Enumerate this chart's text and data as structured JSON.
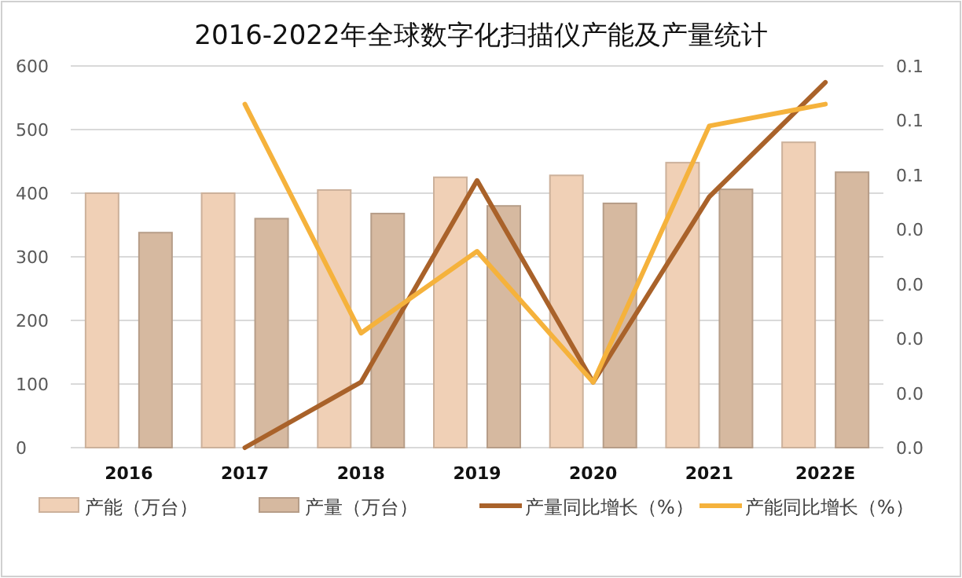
{
  "chart_data": {
    "type": "bar",
    "title": "2016-2022年全球数字化扫描仪产能及产量统计",
    "categories": [
      "2016",
      "2017",
      "2018",
      "2019",
      "2020",
      "2021",
      "2022E"
    ],
    "series": [
      {
        "name": "产能（万台）",
        "color": "#f0d0b6",
        "values": [
          400,
          400,
          405,
          425,
          428,
          448,
          480
        ]
      },
      {
        "name": "产量（万台）",
        "color": "#d6b9a0",
        "values": [
          338,
          360,
          368,
          380,
          384,
          406,
          433
        ]
      },
      {
        "name": "产量同比增长（%）",
        "type": "line",
        "axis": "y2",
        "color": "#a9622a",
        "values": [
          null,
          0.0,
          0.012,
          0.049,
          0.012,
          0.046,
          0.067
        ]
      },
      {
        "name": "产能同比增长（%）",
        "type": "line",
        "axis": "y2",
        "color": "#f5b23c",
        "values": [
          null,
          0.063,
          0.021,
          0.036,
          0.012,
          0.059,
          0.063
        ]
      }
    ],
    "ylim": [
      0,
      600
    ],
    "yticks": [
      0,
      100,
      200,
      300,
      400,
      500,
      600
    ],
    "y2lim": [
      0,
      0.07
    ],
    "y2ticks": [
      {
        "value": 0,
        "label": "0.0"
      },
      {
        "value": 0.01,
        "label": "0.0"
      },
      {
        "value": 0.02,
        "label": "0.0"
      },
      {
        "value": 0.03,
        "label": "0.0"
      },
      {
        "value": 0.04,
        "label": "0.0"
      },
      {
        "value": 0.05,
        "label": "0.1"
      },
      {
        "value": 0.06,
        "label": "0.1"
      },
      {
        "value": 0.07,
        "label": "0.1"
      }
    ],
    "grid": "y",
    "legend": "bottom"
  }
}
